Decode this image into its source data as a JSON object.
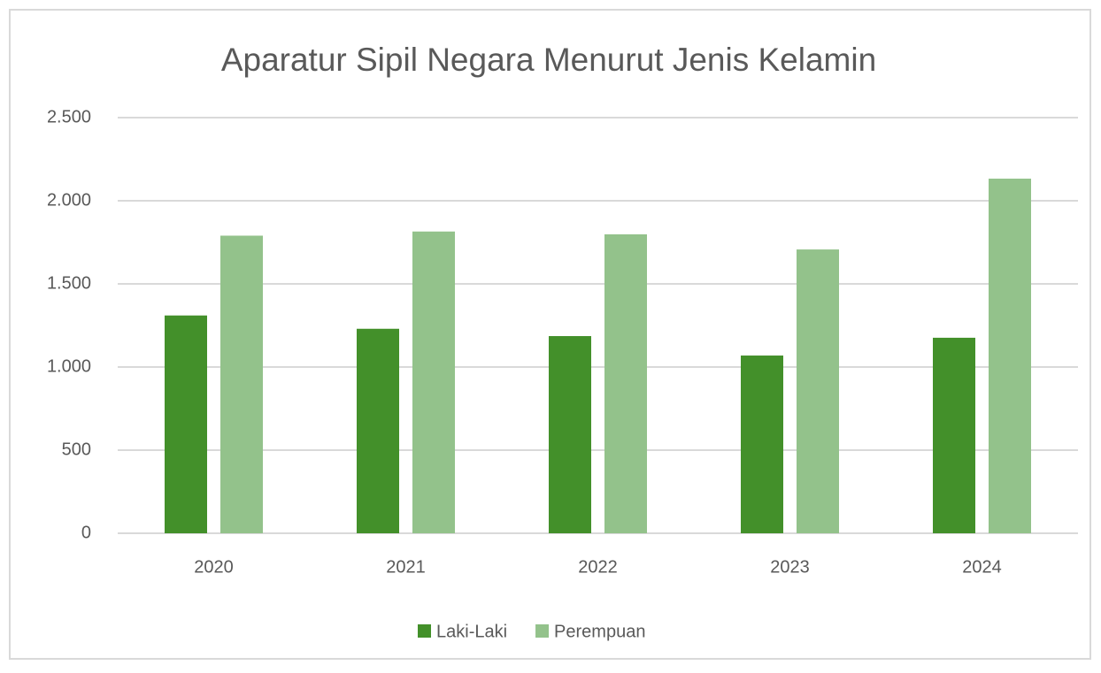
{
  "chart_data": {
    "type": "bar",
    "title": "Aparatur Sipil Negara Menurut Jenis Kelamin",
    "categories": [
      "2020",
      "2021",
      "2022",
      "2023",
      "2024"
    ],
    "series": [
      {
        "name": "Laki-Laki",
        "color": "#43902a",
        "values": [
          1310,
          1230,
          1186,
          1069,
          1176
        ]
      },
      {
        "name": "Perempuan",
        "color": "#93c28b",
        "values": [
          1790,
          1815,
          1798,
          1707,
          2133
        ]
      }
    ],
    "ylim": [
      0,
      2500
    ],
    "yticks": [
      0,
      500,
      {
        "value": 1000,
        "label": "1.000"
      },
      {
        "value": 1500,
        "label": "1.500"
      },
      {
        "value": 2000,
        "label": "2.000"
      },
      {
        "value": 2500,
        "label": "2.500"
      }
    ],
    "grid": true,
    "legend": "bottom"
  }
}
